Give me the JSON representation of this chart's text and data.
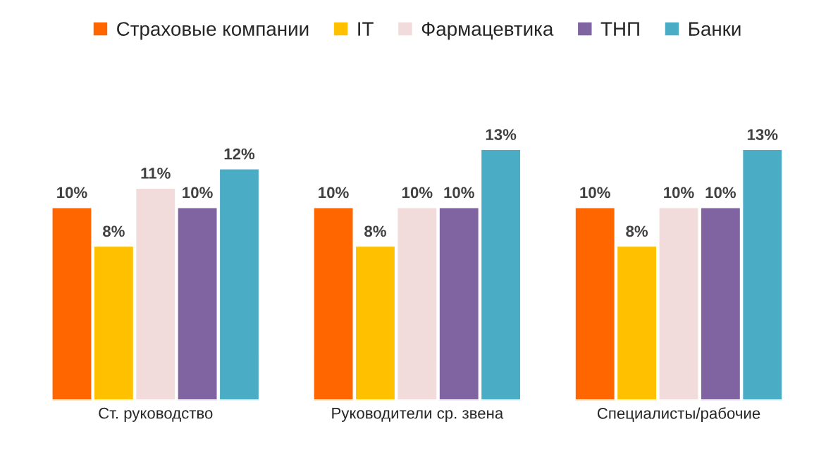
{
  "chart_data": {
    "type": "bar",
    "categories": [
      "Ст. руководство",
      "Руководители ср. звена",
      "Специалисты/рабочие"
    ],
    "series": [
      {
        "name": "Страховые компании",
        "color": "#ff6600",
        "values": [
          10,
          10,
          10
        ],
        "value_labels": [
          "10%",
          "10%",
          "10%"
        ]
      },
      {
        "name": "IT",
        "color": "#ffc000",
        "values": [
          8,
          8,
          8
        ],
        "value_labels": [
          "8%",
          "8%",
          "8%"
        ]
      },
      {
        "name": "Фармацевтика",
        "color": "#f2dcdb",
        "values": [
          11,
          10,
          10
        ],
        "value_labels": [
          "11%",
          "10%",
          "10%"
        ]
      },
      {
        "name": "ТНП",
        "color": "#8064a2",
        "values": [
          10,
          10,
          10
        ],
        "value_labels": [
          "10%",
          "10%",
          "10%"
        ]
      },
      {
        "name": "Банки",
        "color": "#4bacc6",
        "values": [
          12,
          13,
          13
        ],
        "value_labels": [
          "12%",
          "13%",
          "13%"
        ]
      }
    ],
    "legend": "top",
    "grid": false,
    "tick_labels": "x"
  }
}
